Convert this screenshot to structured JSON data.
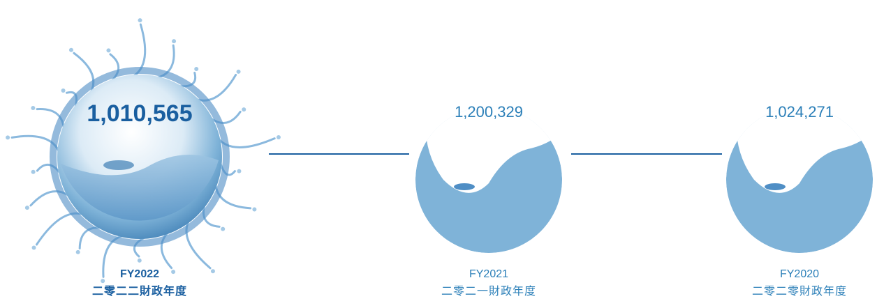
{
  "items": [
    {
      "value": "1,010,565",
      "year": "FY2022",
      "label": "二零二二財政年度"
    },
    {
      "value": "1,200,329",
      "year": "FY2021",
      "label": "二零二一財政年度"
    },
    {
      "value": "1,024,271",
      "year": "FY2020",
      "label": "二零二零財政年度"
    }
  ]
}
